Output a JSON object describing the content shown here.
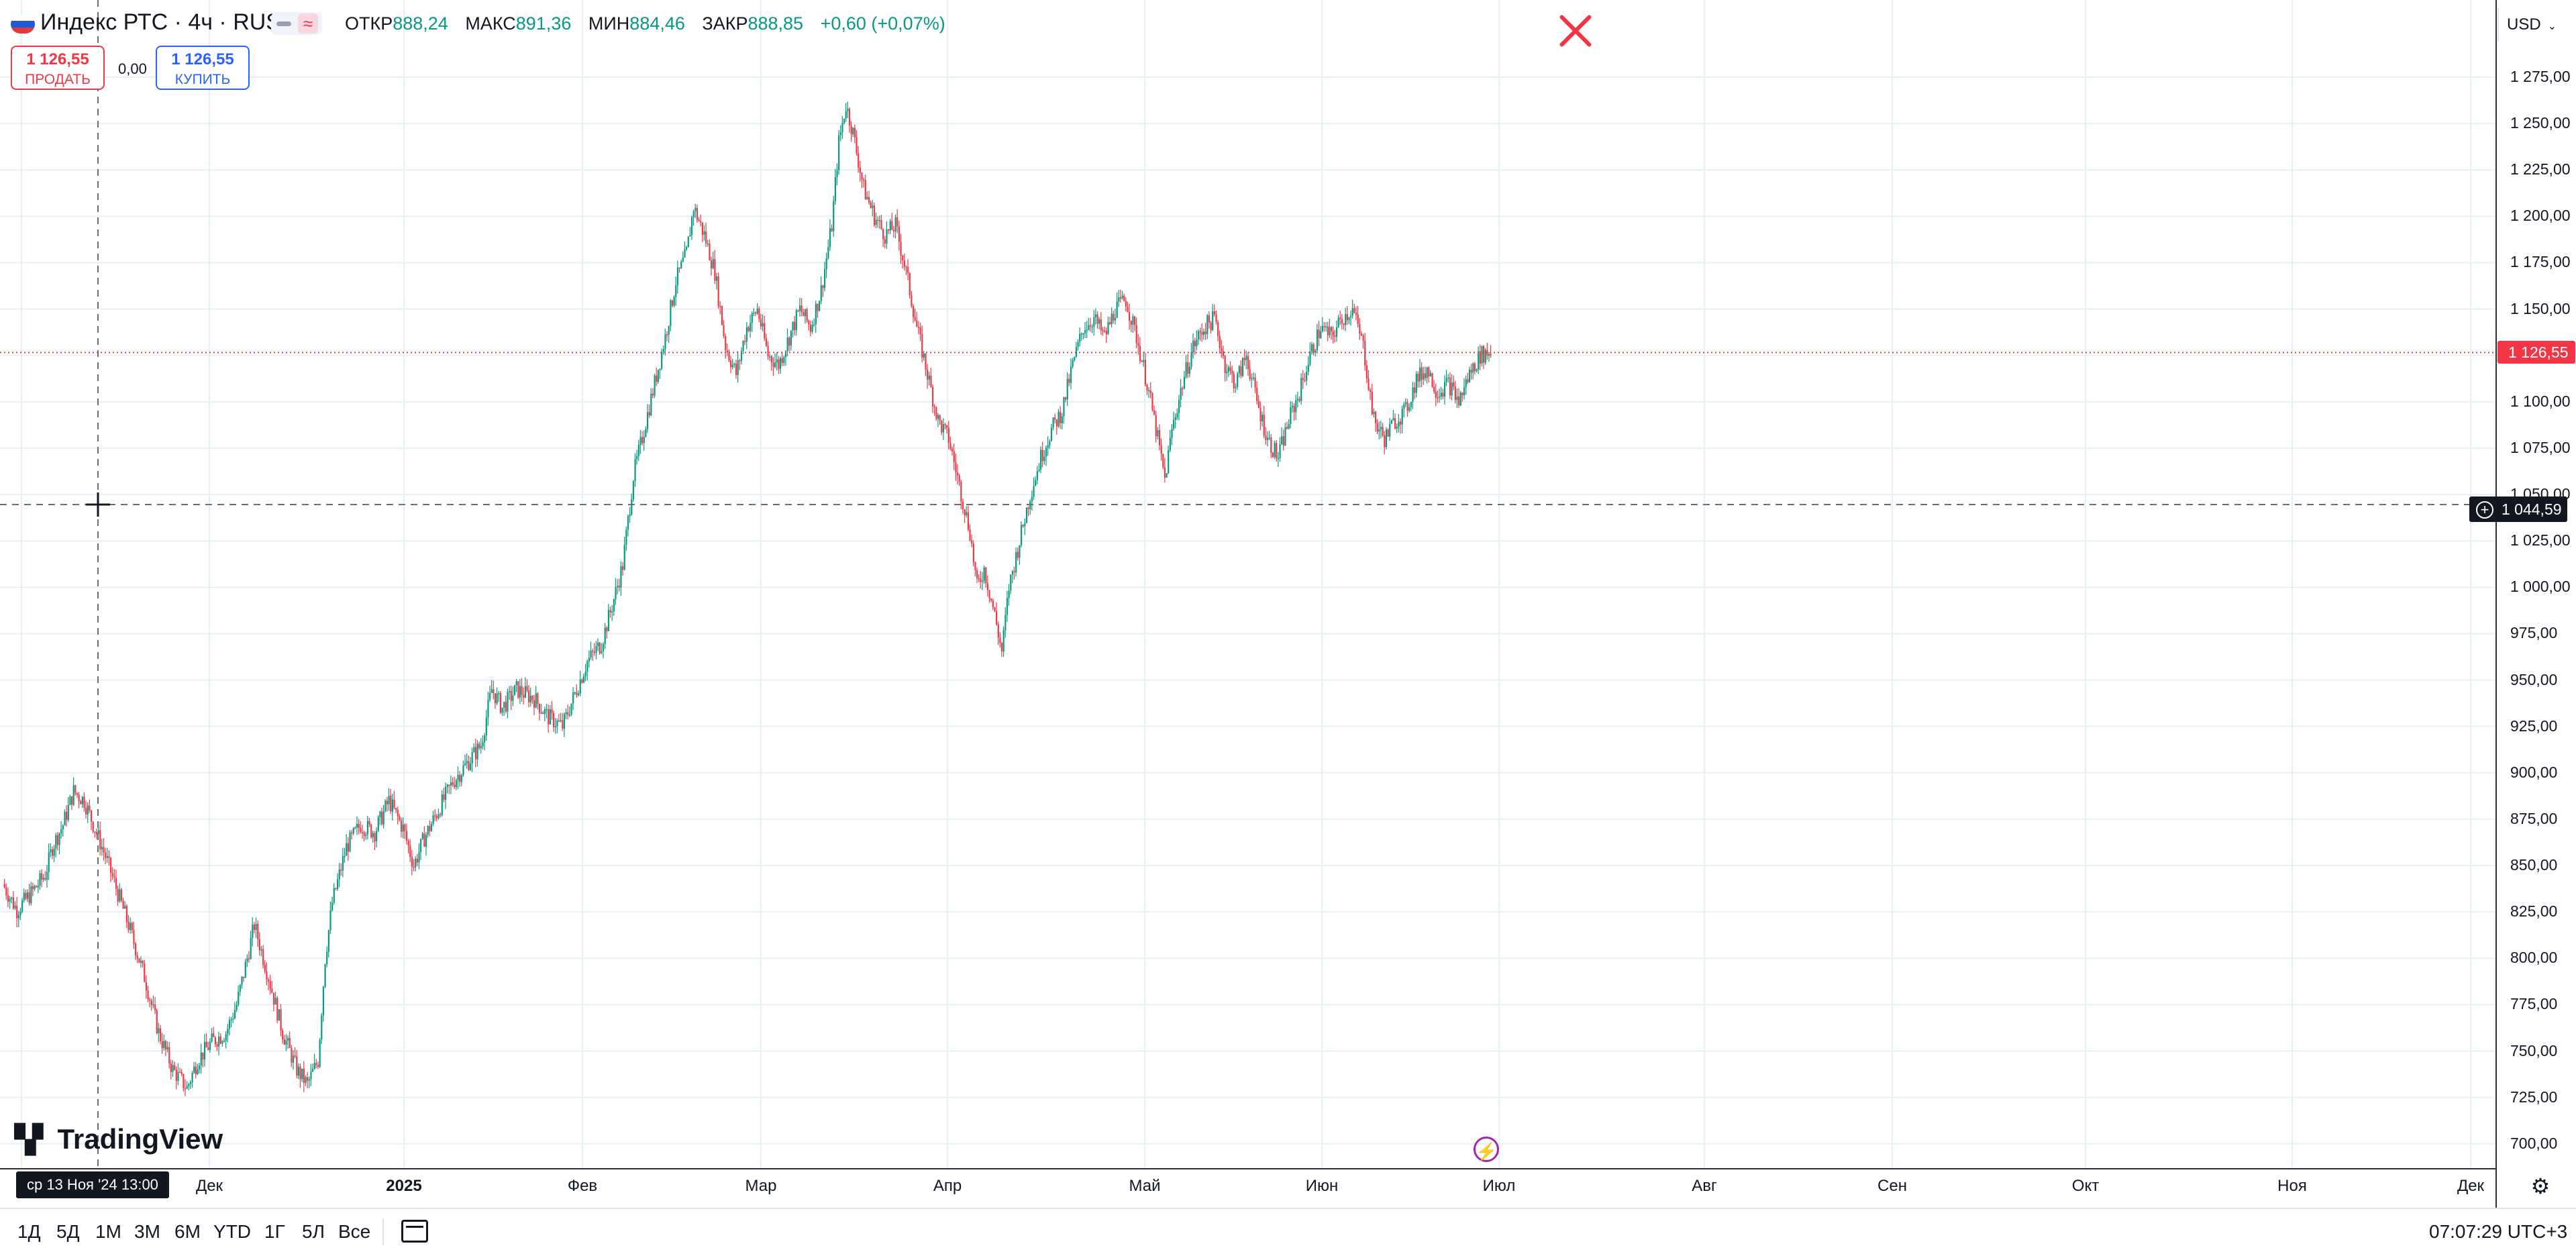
{
  "header": {
    "symbol_title": "Индекс РТС · 4ч · RUS",
    "ohlc": [
      {
        "label": "ОТКР",
        "value": "888,24"
      },
      {
        "label": "МАКС",
        "value": "891,36"
      },
      {
        "label": "МИН",
        "value": "884,46"
      },
      {
        "label": "ЗАКР",
        "value": "888,85"
      },
      {
        "label": "",
        "value": "+0,60 (+0,07%)"
      }
    ],
    "sell": {
      "price": "1 126,55",
      "label": "ПРОДАТЬ"
    },
    "spread": "0,00",
    "buy": {
      "price": "1 126,55",
      "label": "КУПИТЬ"
    },
    "flag_colors": [
      "#ffffff",
      "#1e5bd8",
      "#e23b3b"
    ],
    "toggle_icon": "≈"
  },
  "price_scale": {
    "currency": "USD",
    "ticks": [
      "1 275,00",
      "1 250,00",
      "1 225,00",
      "1 200,00",
      "1 175,00",
      "1 150,00",
      "1 125,00",
      "1 100,00",
      "1 075,00",
      "1 050,00",
      "1 025,00",
      "1 000,00",
      "975,00",
      "950,00",
      "925,00",
      "900,00",
      "875,00",
      "850,00",
      "825,00",
      "800,00",
      "775,00",
      "750,00",
      "725,00",
      "700,00"
    ],
    "last_price_tag": "1 126,55",
    "crosshair_price": "1 044,59"
  },
  "time_axis": {
    "labels": [
      {
        "text": "Дек",
        "year": false
      },
      {
        "text": "2025",
        "year": true
      },
      {
        "text": "Фев",
        "year": false
      },
      {
        "text": "Мар",
        "year": false
      },
      {
        "text": "Апр",
        "year": false
      },
      {
        "text": "Май",
        "year": false
      },
      {
        "text": "Июн",
        "year": false
      },
      {
        "text": "Июл",
        "year": false
      },
      {
        "text": "Авг",
        "year": false
      },
      {
        "text": "Сен",
        "year": false
      },
      {
        "text": "Окт",
        "year": false
      },
      {
        "text": "Ноя",
        "year": false
      },
      {
        "text": "Дек",
        "year": false
      }
    ],
    "crosshair_time": "ср 13 Ноя '24   13:00"
  },
  "watermark": "TradingView",
  "bottom_bar": {
    "ranges": [
      "1Д",
      "5Д",
      "1М",
      "3М",
      "6М",
      "YTD",
      "1Г",
      "5Л",
      "Все"
    ],
    "clock": "07:07:29 UTC+3"
  },
  "colors": {
    "up": "#089981",
    "down": "#f23645",
    "grid": "#e6f0f5",
    "crosshair": "#6a6d78",
    "last_price": "#f23645"
  },
  "chart_data": {
    "type": "candlestick",
    "title": "Индекс РТС · 4ч · RUS",
    "y_range": [
      690,
      1290
    ],
    "x_range": [
      "2024-11",
      "2025-12"
    ],
    "ohlc_profile_close": [
      [
        0,
        840
      ],
      [
        8,
        826
      ],
      [
        16,
        835
      ],
      [
        24,
        845
      ],
      [
        28,
        860
      ],
      [
        34,
        872
      ],
      [
        40,
        890
      ],
      [
        46,
        885
      ],
      [
        52,
        870
      ],
      [
        58,
        855
      ],
      [
        64,
        838
      ],
      [
        72,
        815
      ],
      [
        80,
        790
      ],
      [
        88,
        760
      ],
      [
        96,
        740
      ],
      [
        104,
        730
      ],
      [
        110,
        745
      ],
      [
        118,
        755
      ],
      [
        126,
        760
      ],
      [
        132,
        775
      ],
      [
        138,
        800
      ],
      [
        142,
        818
      ],
      [
        150,
        790
      ],
      [
        158,
        760
      ],
      [
        166,
        740
      ],
      [
        172,
        732
      ],
      [
        178,
        745
      ],
      [
        182,
        800
      ],
      [
        186,
        830
      ],
      [
        194,
        860
      ],
      [
        202,
        872
      ],
      [
        210,
        868
      ],
      [
        218,
        885
      ],
      [
        226,
        870
      ],
      [
        232,
        850
      ],
      [
        238,
        865
      ],
      [
        246,
        880
      ],
      [
        254,
        895
      ],
      [
        262,
        905
      ],
      [
        270,
        915
      ],
      [
        276,
        945
      ],
      [
        282,
        935
      ],
      [
        290,
        945
      ],
      [
        300,
        940
      ],
      [
        308,
        930
      ],
      [
        316,
        925
      ],
      [
        322,
        940
      ],
      [
        330,
        960
      ],
      [
        338,
        970
      ],
      [
        344,
        990
      ],
      [
        350,
        1012
      ],
      [
        356,
        1060
      ],
      [
        362,
        1085
      ],
      [
        368,
        1110
      ],
      [
        374,
        1135
      ],
      [
        380,
        1165
      ],
      [
        386,
        1180
      ],
      [
        390,
        1205
      ],
      [
        396,
        1190
      ],
      [
        402,
        1170
      ],
      [
        408,
        1130
      ],
      [
        414,
        1115
      ],
      [
        420,
        1140
      ],
      [
        426,
        1150
      ],
      [
        432,
        1125
      ],
      [
        438,
        1120
      ],
      [
        444,
        1135
      ],
      [
        450,
        1150
      ],
      [
        456,
        1140
      ],
      [
        462,
        1160
      ],
      [
        468,
        1195
      ],
      [
        472,
        1240
      ],
      [
        476,
        1260
      ],
      [
        480,
        1245
      ],
      [
        486,
        1215
      ],
      [
        492,
        1200
      ],
      [
        498,
        1190
      ],
      [
        504,
        1195
      ],
      [
        510,
        1170
      ],
      [
        516,
        1140
      ],
      [
        522,
        1115
      ],
      [
        528,
        1090
      ],
      [
        534,
        1080
      ],
      [
        540,
        1055
      ],
      [
        546,
        1030
      ],
      [
        550,
        1000
      ],
      [
        554,
        1010
      ],
      [
        560,
        985
      ],
      [
        564,
        965
      ],
      [
        568,
        1000
      ],
      [
        574,
        1025
      ],
      [
        580,
        1050
      ],
      [
        586,
        1070
      ],
      [
        592,
        1085
      ],
      [
        598,
        1095
      ],
      [
        604,
        1120
      ],
      [
        610,
        1140
      ],
      [
        616,
        1145
      ],
      [
        622,
        1135
      ],
      [
        628,
        1150
      ],
      [
        634,
        1155
      ],
      [
        640,
        1135
      ],
      [
        646,
        1110
      ],
      [
        652,
        1080
      ],
      [
        656,
        1058
      ],
      [
        660,
        1085
      ],
      [
        666,
        1110
      ],
      [
        672,
        1130
      ],
      [
        678,
        1140
      ],
      [
        684,
        1145
      ],
      [
        690,
        1120
      ],
      [
        696,
        1110
      ],
      [
        702,
        1125
      ],
      [
        708,
        1100
      ],
      [
        714,
        1080
      ],
      [
        720,
        1070
      ],
      [
        726,
        1090
      ],
      [
        732,
        1105
      ],
      [
        738,
        1125
      ],
      [
        744,
        1140
      ],
      [
        750,
        1135
      ],
      [
        756,
        1145
      ],
      [
        762,
        1150
      ],
      [
        768,
        1130
      ],
      [
        774,
        1090
      ],
      [
        780,
        1080
      ],
      [
        786,
        1090
      ],
      [
        792,
        1095
      ],
      [
        798,
        1112
      ],
      [
        804,
        1118
      ],
      [
        810,
        1105
      ],
      [
        816,
        1110
      ],
      [
        822,
        1100
      ],
      [
        828,
        1115
      ],
      [
        834,
        1125
      ],
      [
        840,
        1127
      ]
    ]
  }
}
